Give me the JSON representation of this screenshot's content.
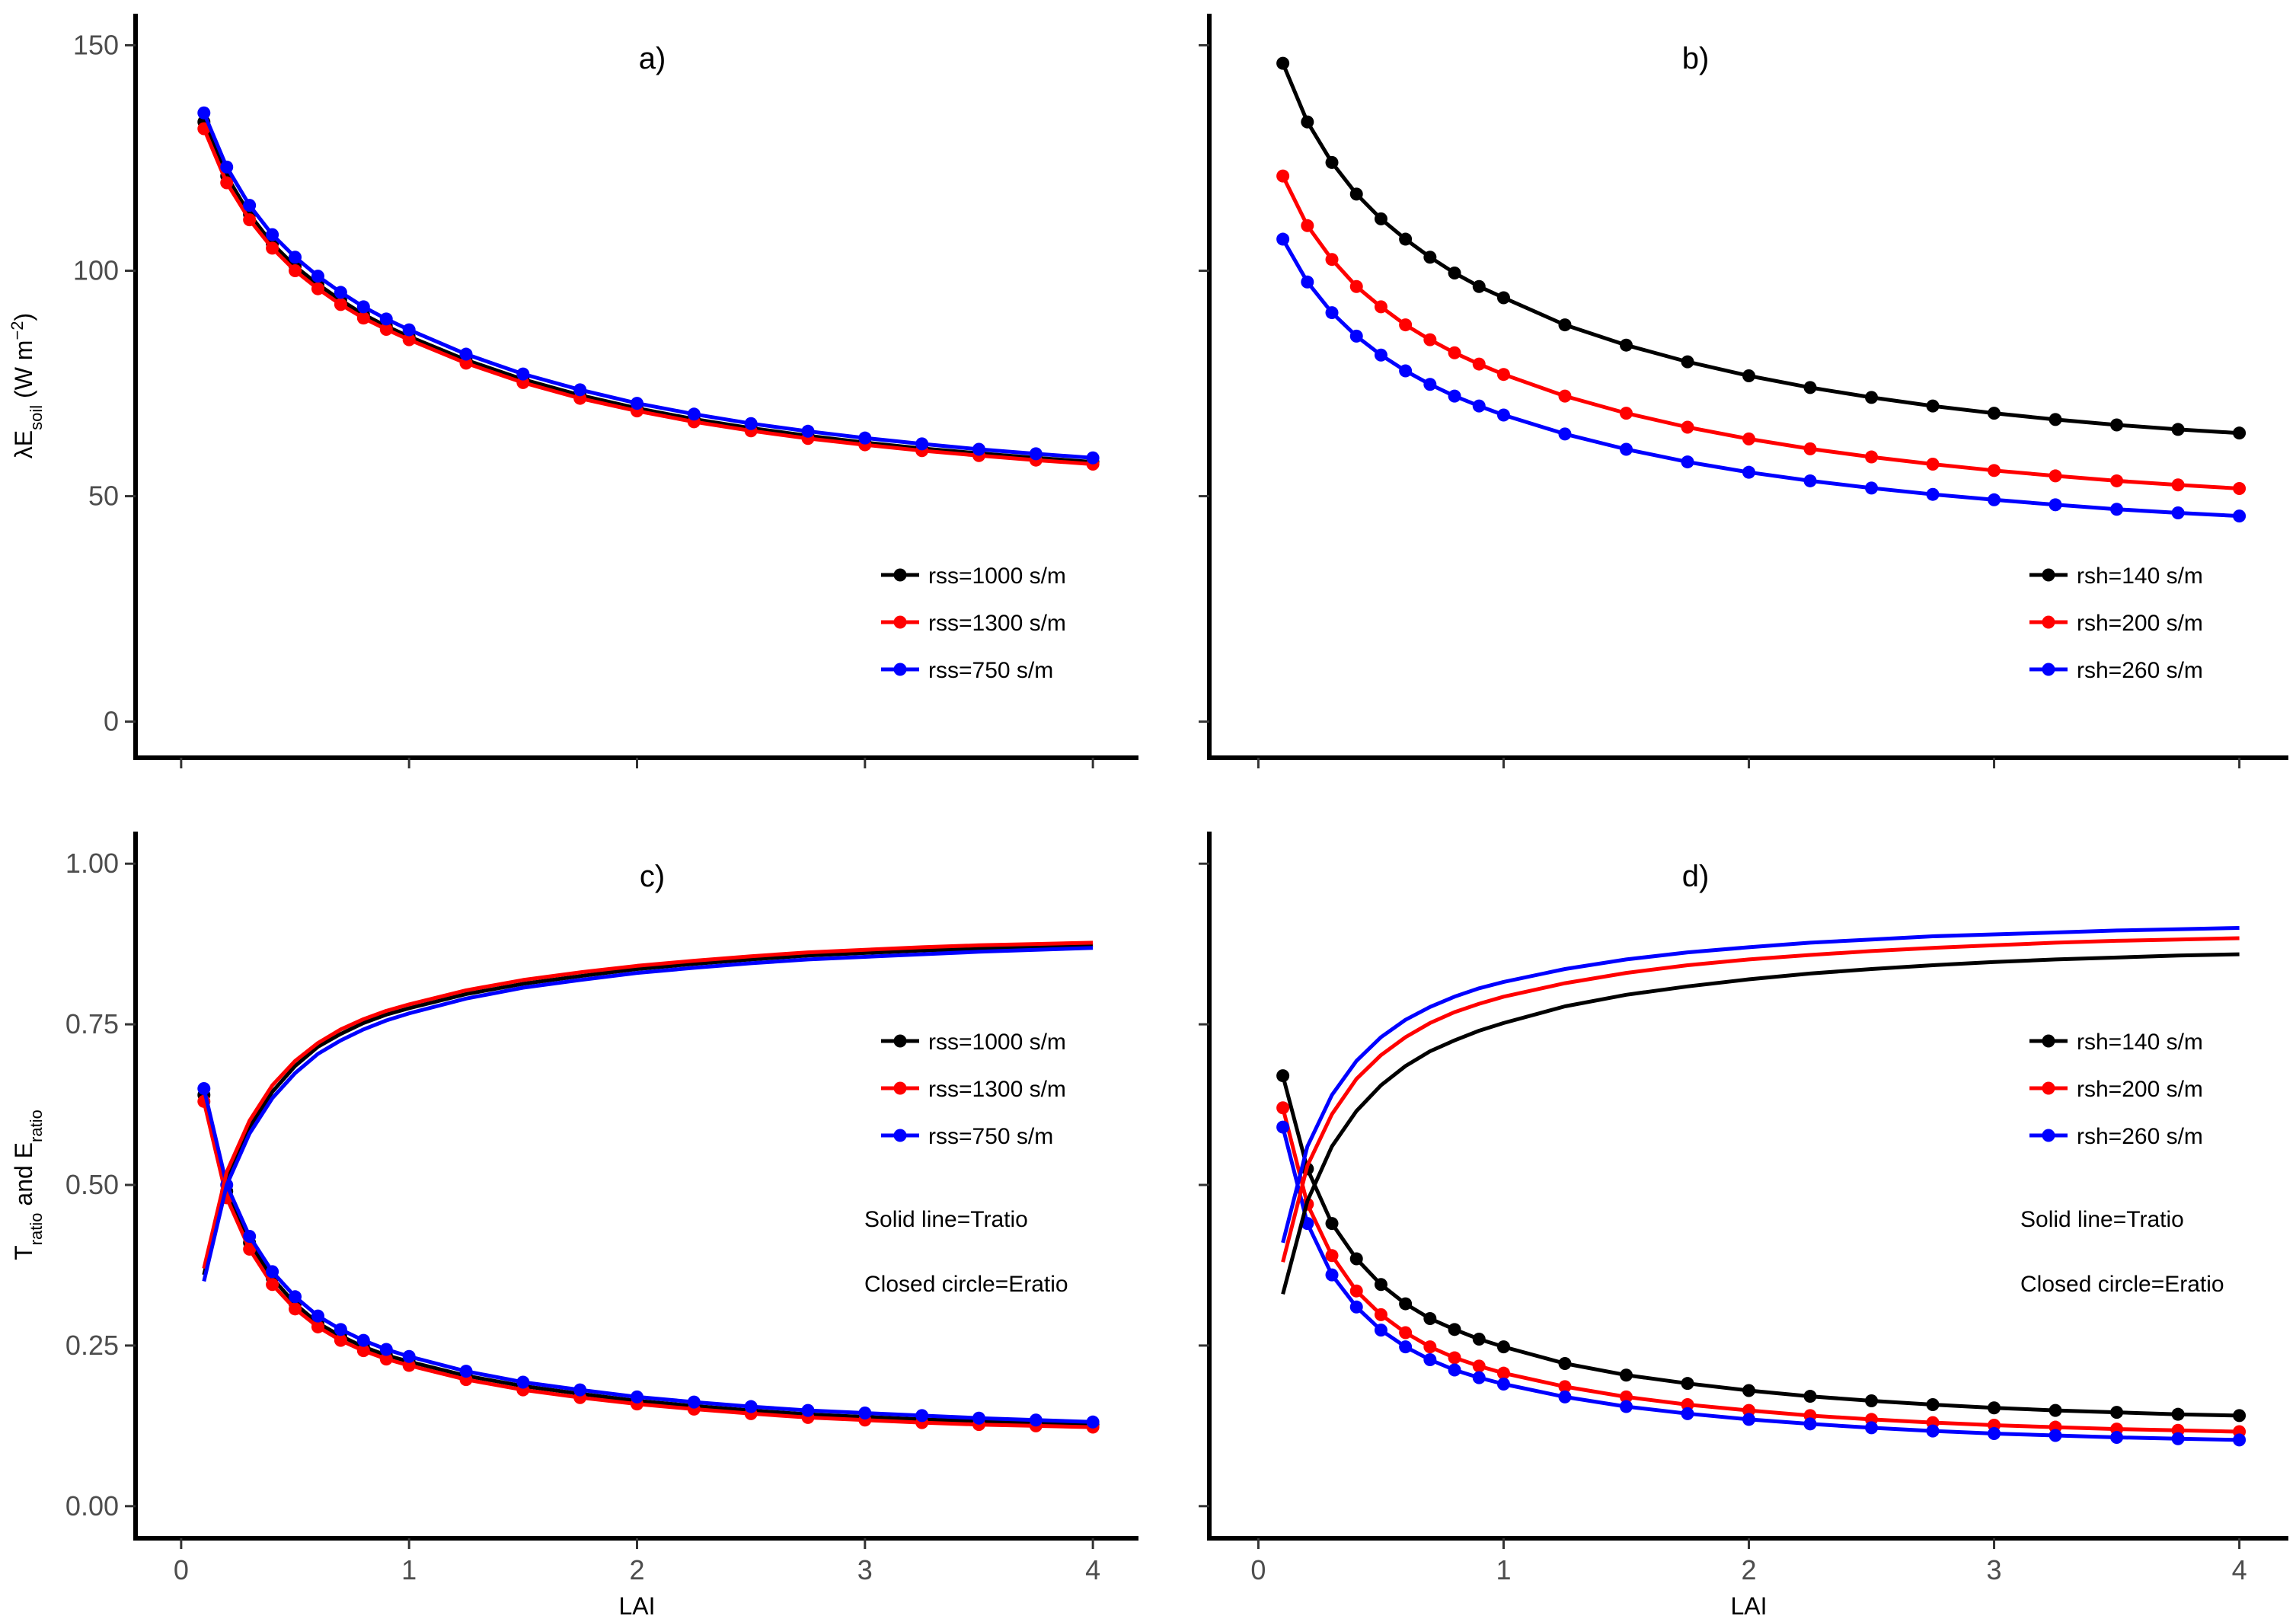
{
  "chart_data": [
    {
      "panel": "a",
      "type": "line",
      "title": "a)",
      "xlabel": "",
      "ylabel_main": "λE",
      "ylabel_sub": "soil",
      "ylabel_unit_pre": " (W m",
      "ylabel_unit_sup": "−2",
      "ylabel_unit_post": ")",
      "xlim": [
        -0.2,
        4.2
      ],
      "ylim": [
        -8,
        157
      ],
      "xticks": [
        0,
        1,
        2,
        3,
        4
      ],
      "xtick_labels_shown": false,
      "yticks": [
        0,
        50,
        100,
        150
      ],
      "ytick_labels": [
        "0",
        "50",
        "100",
        "150"
      ],
      "x": [
        0.1,
        0.2,
        0.3,
        0.4,
        0.5,
        0.6,
        0.7,
        0.8,
        0.9,
        1.0,
        1.25,
        1.5,
        1.75,
        2.0,
        2.25,
        2.5,
        2.75,
        3.0,
        3.25,
        3.5,
        3.75,
        4.0
      ],
      "series": [
        {
          "name": "rss=1000 s/m",
          "color": "#000000",
          "markers": true,
          "values": [
            133,
            121,
            112.5,
            106,
            101,
            97,
            93.5,
            90.3,
            87.7,
            85.4,
            80.2,
            75.9,
            72.4,
            69.5,
            67.1,
            65.1,
            63.4,
            61.9,
            60.6,
            59.5,
            58.5,
            57.6
          ]
        },
        {
          "name": "rss=1300 s/m",
          "color": "#ff0000",
          "markers": true,
          "values": [
            131.5,
            119.5,
            111.3,
            105,
            100,
            96,
            92.5,
            89.5,
            87,
            84.7,
            79.5,
            75.2,
            71.7,
            68.9,
            66.5,
            64.5,
            62.8,
            61.4,
            60.1,
            59,
            58,
            57.1
          ]
        },
        {
          "name": "rss=750 s/m",
          "color": "#0000ff",
          "markers": true,
          "values": [
            135,
            123,
            114.5,
            108,
            103,
            98.8,
            95.2,
            92,
            89.3,
            86.9,
            81.5,
            77.1,
            73.6,
            70.6,
            68.2,
            66.1,
            64.4,
            62.9,
            61.6,
            60.4,
            59.4,
            58.5
          ]
        }
      ],
      "notes": []
    },
    {
      "panel": "b",
      "type": "line",
      "title": "b)",
      "xlabel": "",
      "xlim": [
        -0.2,
        4.2
      ],
      "ylim": [
        -8,
        157
      ],
      "xticks": [
        0,
        1,
        2,
        3,
        4
      ],
      "xtick_labels_shown": false,
      "yticks": [
        0,
        50,
        100,
        150
      ],
      "ytick_labels_shown": false,
      "x": [
        0.1,
        0.2,
        0.3,
        0.4,
        0.5,
        0.6,
        0.7,
        0.8,
        0.9,
        1.0,
        1.25,
        1.5,
        1.75,
        2.0,
        2.25,
        2.5,
        2.75,
        3.0,
        3.25,
        3.5,
        3.75,
        4.0
      ],
      "series": [
        {
          "name": "rsh=140 s/m",
          "color": "#000000",
          "markers": true,
          "values": [
            146,
            133,
            124,
            117,
            111.5,
            107,
            103,
            99.5,
            96.5,
            94,
            88,
            83.5,
            79.8,
            76.7,
            74.1,
            71.9,
            70,
            68.4,
            67,
            65.8,
            64.8,
            64
          ]
        },
        {
          "name": "rsh=200 s/m",
          "color": "#ff0000",
          "markers": true,
          "values": [
            121,
            110,
            102.5,
            96.5,
            92,
            88,
            84.7,
            81.8,
            79.3,
            77,
            72.2,
            68.4,
            65.3,
            62.7,
            60.5,
            58.7,
            57.1,
            55.7,
            54.5,
            53.4,
            52.5,
            51.7
          ]
        },
        {
          "name": "rsh=260 s/m",
          "color": "#0000ff",
          "markers": true,
          "values": [
            107,
            97.5,
            90.7,
            85.5,
            81.3,
            77.8,
            74.8,
            72.2,
            70,
            68,
            63.8,
            60.4,
            57.6,
            55.3,
            53.4,
            51.8,
            50.4,
            49.2,
            48.1,
            47.1,
            46.3,
            45.6
          ]
        }
      ],
      "notes": []
    },
    {
      "panel": "c",
      "type": "line",
      "title": "c)",
      "xlabel": "LAI",
      "ylabel_main": "T",
      "ylabel_sub": "ratio",
      "ylabel_mid": " and E",
      "ylabel_sub2": "ratio",
      "xlim": [
        -0.2,
        4.2
      ],
      "ylim": [
        -0.05,
        1.05
      ],
      "xticks": [
        0,
        1,
        2,
        3,
        4
      ],
      "xtick_labels": [
        "0",
        "1",
        "2",
        "3",
        "4"
      ],
      "yticks": [
        0,
        0.25,
        0.5,
        0.75,
        1.0
      ],
      "ytick_labels": [
        "0.00",
        "0.25",
        "0.50",
        "0.75",
        "1.00"
      ],
      "x": [
        0.1,
        0.2,
        0.3,
        0.4,
        0.5,
        0.6,
        0.7,
        0.8,
        0.9,
        1.0,
        1.25,
        1.5,
        1.75,
        2.0,
        2.25,
        2.5,
        2.75,
        3.0,
        3.25,
        3.5,
        3.75,
        4.0
      ],
      "series": [
        {
          "name": "rss=1000 s/m",
          "color": "#000000",
          "markers": true,
          "values": [
            0.64,
            0.49,
            0.41,
            0.355,
            0.315,
            0.285,
            0.265,
            0.248,
            0.235,
            0.225,
            0.203,
            0.187,
            0.175,
            0.164,
            0.156,
            0.149,
            0.143,
            0.139,
            0.135,
            0.132,
            0.129,
            0.127
          ]
        },
        {
          "name": "rss=1300 s/m",
          "color": "#ff0000",
          "markers": true,
          "values": [
            0.63,
            0.48,
            0.4,
            0.345,
            0.307,
            0.279,
            0.258,
            0.242,
            0.229,
            0.219,
            0.197,
            0.181,
            0.169,
            0.159,
            0.151,
            0.144,
            0.138,
            0.134,
            0.13,
            0.127,
            0.125,
            0.123
          ]
        },
        {
          "name": "rss=750 s/m",
          "color": "#0000ff",
          "markers": true,
          "values": [
            0.65,
            0.5,
            0.42,
            0.365,
            0.326,
            0.296,
            0.275,
            0.258,
            0.244,
            0.233,
            0.21,
            0.193,
            0.181,
            0.17,
            0.162,
            0.155,
            0.149,
            0.145,
            0.141,
            0.137,
            0.134,
            0.131
          ]
        },
        {
          "name": "rss=1000 s/m",
          "color": "#000000",
          "markers": false,
          "values": [
            0.36,
            0.51,
            0.59,
            0.645,
            0.685,
            0.715,
            0.735,
            0.752,
            0.765,
            0.775,
            0.797,
            0.813,
            0.825,
            0.836,
            0.844,
            0.851,
            0.857,
            0.861,
            0.865,
            0.868,
            0.871,
            0.873
          ]
        },
        {
          "name": "rss=1300 s/m",
          "color": "#ff0000",
          "markers": false,
          "values": [
            0.37,
            0.52,
            0.6,
            0.655,
            0.693,
            0.721,
            0.742,
            0.758,
            0.771,
            0.781,
            0.803,
            0.819,
            0.831,
            0.841,
            0.849,
            0.856,
            0.862,
            0.866,
            0.87,
            0.873,
            0.875,
            0.877
          ]
        },
        {
          "name": "rss=750 s/m",
          "color": "#0000ff",
          "markers": false,
          "values": [
            0.35,
            0.5,
            0.58,
            0.635,
            0.674,
            0.704,
            0.725,
            0.742,
            0.756,
            0.767,
            0.79,
            0.807,
            0.819,
            0.83,
            0.838,
            0.845,
            0.851,
            0.855,
            0.859,
            0.863,
            0.866,
            0.869
          ]
        }
      ],
      "legend_names": [
        "rss=1000 s/m",
        "rss=1300 s/m",
        "rss=750 s/m"
      ],
      "legend_colors": [
        "#000000",
        "#ff0000",
        "#0000ff"
      ],
      "notes": [
        "Solid line=Tratio",
        "Closed circle=Eratio"
      ]
    },
    {
      "panel": "d",
      "type": "line",
      "title": "d)",
      "xlabel": "LAI",
      "xlim": [
        -0.2,
        4.2
      ],
      "ylim": [
        -0.05,
        1.05
      ],
      "xticks": [
        0,
        1,
        2,
        3,
        4
      ],
      "xtick_labels": [
        "0",
        "1",
        "2",
        "3",
        "4"
      ],
      "yticks": [
        0,
        0.25,
        0.5,
        0.75,
        1.0
      ],
      "ytick_labels_shown": false,
      "x": [
        0.1,
        0.2,
        0.3,
        0.4,
        0.5,
        0.6,
        0.7,
        0.8,
        0.9,
        1.0,
        1.25,
        1.5,
        1.75,
        2.0,
        2.25,
        2.5,
        2.75,
        3.0,
        3.25,
        3.5,
        3.75,
        4.0
      ],
      "series": [
        {
          "name": "rsh=140 s/m",
          "color": "#000000",
          "markers": true,
          "values": [
            0.67,
            0.525,
            0.44,
            0.385,
            0.345,
            0.315,
            0.292,
            0.275,
            0.26,
            0.248,
            0.222,
            0.204,
            0.191,
            0.18,
            0.171,
            0.164,
            0.158,
            0.153,
            0.149,
            0.146,
            0.143,
            0.141
          ]
        },
        {
          "name": "rsh=200 s/m",
          "color": "#ff0000",
          "markers": true,
          "values": [
            0.62,
            0.47,
            0.39,
            0.335,
            0.298,
            0.27,
            0.248,
            0.231,
            0.218,
            0.207,
            0.186,
            0.17,
            0.158,
            0.149,
            0.141,
            0.135,
            0.13,
            0.126,
            0.123,
            0.12,
            0.118,
            0.116
          ]
        },
        {
          "name": "rsh=260 s/m",
          "color": "#0000ff",
          "markers": true,
          "values": [
            0.59,
            0.44,
            0.36,
            0.31,
            0.274,
            0.248,
            0.228,
            0.212,
            0.2,
            0.19,
            0.17,
            0.155,
            0.144,
            0.135,
            0.128,
            0.122,
            0.117,
            0.113,
            0.11,
            0.107,
            0.105,
            0.103
          ]
        },
        {
          "name": "rsh=140 s/m",
          "color": "#000000",
          "markers": false,
          "values": [
            0.33,
            0.475,
            0.56,
            0.615,
            0.655,
            0.685,
            0.708,
            0.725,
            0.74,
            0.752,
            0.778,
            0.796,
            0.809,
            0.82,
            0.829,
            0.836,
            0.842,
            0.847,
            0.851,
            0.854,
            0.857,
            0.859
          ]
        },
        {
          "name": "rsh=200 s/m",
          "color": "#ff0000",
          "markers": false,
          "values": [
            0.38,
            0.53,
            0.61,
            0.665,
            0.702,
            0.73,
            0.752,
            0.769,
            0.782,
            0.793,
            0.814,
            0.83,
            0.842,
            0.851,
            0.858,
            0.864,
            0.869,
            0.873,
            0.877,
            0.88,
            0.882,
            0.884
          ]
        },
        {
          "name": "rsh=260 s/m",
          "color": "#0000ff",
          "markers": false,
          "values": [
            0.41,
            0.56,
            0.64,
            0.693,
            0.73,
            0.757,
            0.777,
            0.793,
            0.806,
            0.816,
            0.836,
            0.851,
            0.862,
            0.87,
            0.877,
            0.882,
            0.887,
            0.89,
            0.893,
            0.896,
            0.898,
            0.9
          ]
        }
      ],
      "legend_names": [
        "rsh=140 s/m",
        "rsh=200 s/m",
        "rsh=260 s/m"
      ],
      "legend_colors": [
        "#000000",
        "#ff0000",
        "#0000ff"
      ],
      "notes": [
        "Solid line=Tratio",
        "Closed circle=Eratio"
      ]
    }
  ]
}
